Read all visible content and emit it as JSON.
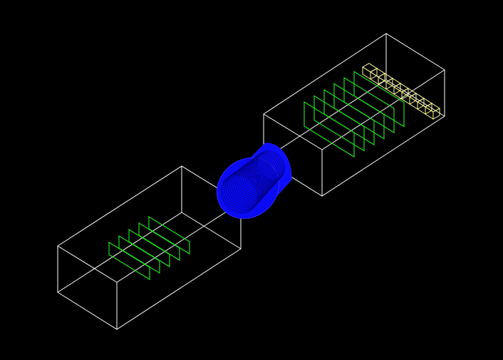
{
  "viewer": {
    "background": "#000000",
    "colors": {
      "world_volume": "#ffffff",
      "detector_plane": "#22dd22",
      "target": "#1010ff",
      "calorimeter": "#ffff99"
    }
  },
  "scene": {
    "upstream_planes": 5,
    "downstream_planes": 6,
    "calorimeter_cells": 9,
    "target_rings": 22
  }
}
